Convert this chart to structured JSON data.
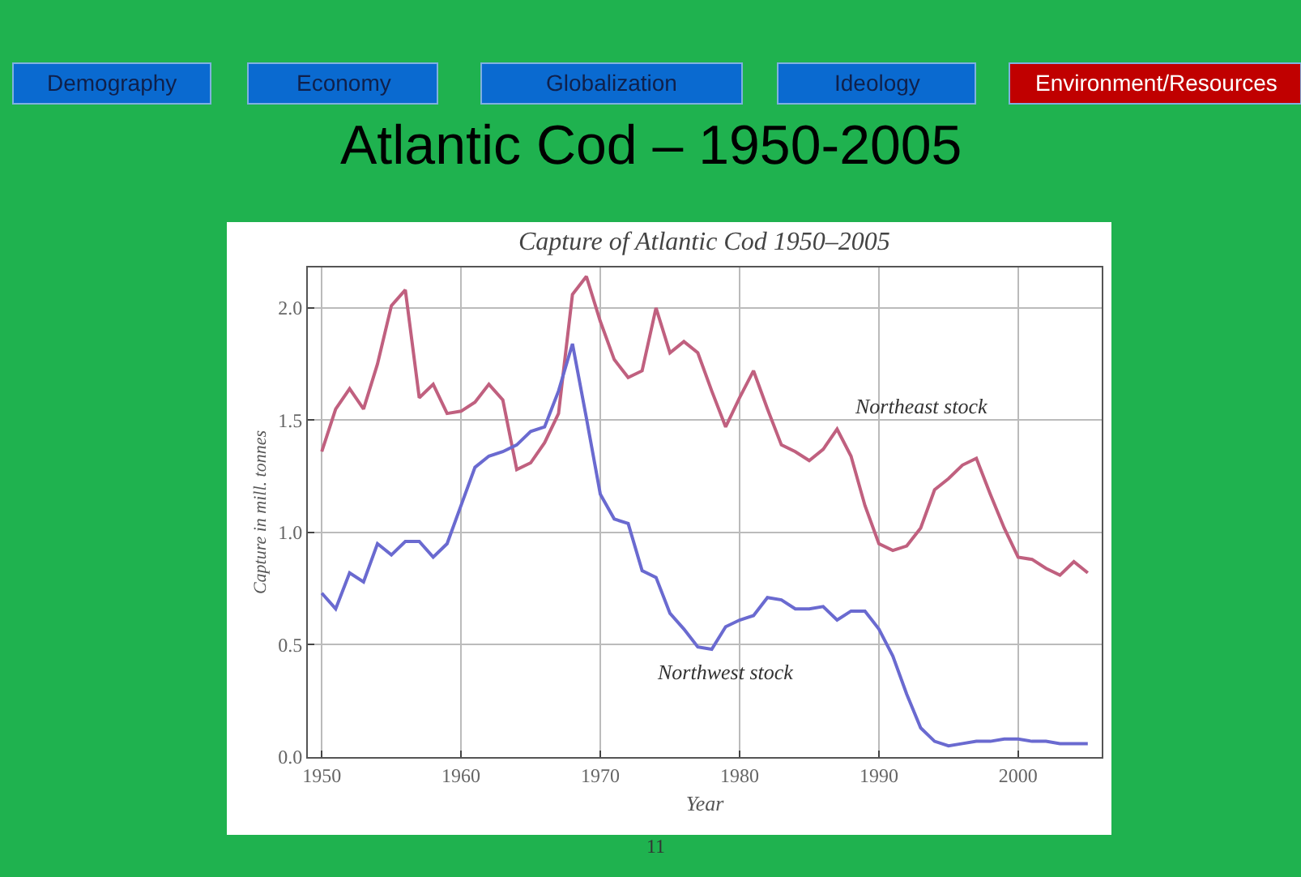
{
  "chart_data": {
    "type": "line",
    "title": "Atlantic Cod – 1950-2005",
    "subtitle": "Capture of Atlantic Cod 1950–2005",
    "xlabel": "Year",
    "ylabel": "Capture in mill. tonnes",
    "annotations": [
      "Demography",
      "Economy",
      "Globalization",
      "Ideology",
      "Environment/Resources",
      "11"
    ],
    "x": [
      1950,
      1951,
      1952,
      1953,
      1954,
      1955,
      1956,
      1957,
      1958,
      1959,
      1960,
      1961,
      1962,
      1963,
      1964,
      1965,
      1966,
      1967,
      1968,
      1969,
      1970,
      1971,
      1972,
      1973,
      1974,
      1975,
      1976,
      1977,
      1978,
      1979,
      1980,
      1981,
      1982,
      1983,
      1984,
      1985,
      1986,
      1987,
      1988,
      1989,
      1990,
      1991,
      1992,
      1993,
      1994,
      1995,
      1996,
      1997,
      1998,
      1999,
      2000,
      2001,
      2002,
      2003,
      2004,
      2005
    ],
    "series": [
      {
        "name": "Northeast stock",
        "color": "#c0607f",
        "values": [
          1.36,
          1.55,
          1.64,
          1.55,
          1.75,
          2.01,
          2.08,
          1.6,
          1.66,
          1.53,
          1.54,
          1.58,
          1.66,
          1.59,
          1.28,
          1.31,
          1.4,
          1.53,
          2.06,
          2.14,
          1.94,
          1.77,
          1.69,
          1.72,
          2.0,
          1.8,
          1.85,
          1.8,
          1.63,
          1.47,
          1.6,
          1.72,
          1.55,
          1.39,
          1.36,
          1.32,
          1.37,
          1.46,
          1.34,
          1.12,
          0.95,
          0.92,
          0.94,
          1.02,
          1.19,
          1.24,
          1.3,
          1.33,
          1.17,
          1.02,
          0.89,
          0.88,
          0.84,
          0.81,
          0.87,
          0.82
        ]
      },
      {
        "name": "Northwest stock",
        "color": "#6a6ad0",
        "values": [
          0.73,
          0.66,
          0.82,
          0.78,
          0.95,
          0.9,
          0.96,
          0.96,
          0.89,
          0.95,
          1.12,
          1.29,
          1.34,
          1.36,
          1.39,
          1.45,
          1.47,
          1.63,
          1.84,
          1.51,
          1.17,
          1.06,
          1.04,
          0.83,
          0.8,
          0.64,
          0.57,
          0.49,
          0.48,
          0.58,
          0.61,
          0.63,
          0.71,
          0.7,
          0.66,
          0.66,
          0.67,
          0.61,
          0.65,
          0.65,
          0.57,
          0.45,
          0.28,
          0.13,
          0.07,
          0.05,
          0.06,
          0.07,
          0.07,
          0.08,
          0.08,
          0.07,
          0.07,
          0.06,
          0.06,
          0.06
        ]
      }
    ],
    "xlim": [
      1949,
      2006
    ],
    "xticks": [
      1950,
      1960,
      1970,
      1980,
      1990,
      2000
    ],
    "ylim": [
      0,
      2.18
    ],
    "yticks": [
      {
        "value": 0,
        "label": "0.0"
      },
      {
        "value": 0.5,
        "label": "0.5"
      },
      {
        "value": 1,
        "label": "1.0"
      },
      {
        "value": 1.5,
        "label": "1.5"
      },
      {
        "value": 2,
        "label": "2.0"
      }
    ],
    "grid": true,
    "legend": false,
    "marker": "none",
    "line_style": "solid"
  }
}
